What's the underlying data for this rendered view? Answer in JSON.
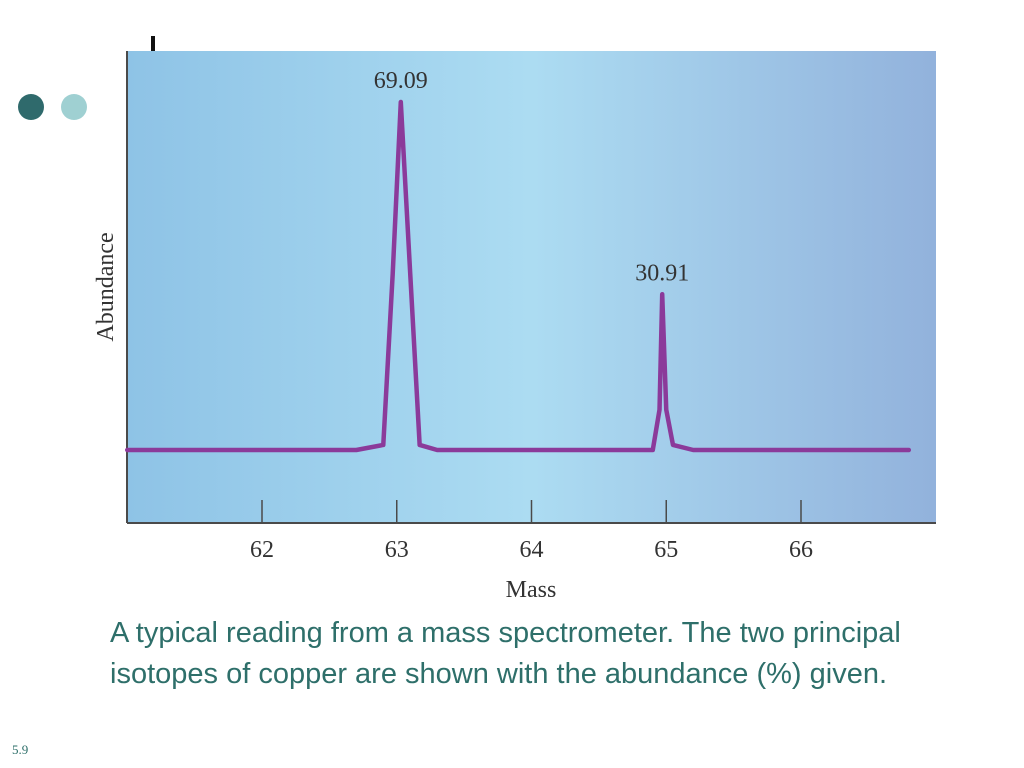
{
  "slide": {
    "caption": "A typical reading from a mass spectrometer.  The two principal isotopes of copper are shown with the abundance (%) given.",
    "slide_number": "5.9",
    "decor": {
      "dot_dark_color": "#2f6a6c",
      "dot_light_color": "#9fd0d2",
      "caption_color": "#2e6f6a"
    }
  },
  "chart_data": {
    "type": "line",
    "title": "",
    "xlabel": "Mass",
    "ylabel": "Abundance",
    "xlim": [
      61,
      67
    ],
    "ylim": [
      0,
      69.09
    ],
    "x_ticks": [
      62,
      63,
      64,
      65,
      66
    ],
    "x_tick_labels": [
      "62",
      "63",
      "64",
      "65",
      "66"
    ],
    "grid": false,
    "series": [
      {
        "color": "#8b3a9a",
        "points": [
          [
            61.0,
            0
          ],
          [
            62.7,
            0
          ],
          [
            62.9,
            1
          ],
          [
            62.97,
            35
          ],
          [
            63.03,
            69.09
          ],
          [
            63.1,
            35
          ],
          [
            63.17,
            1
          ],
          [
            63.3,
            0
          ],
          [
            64.9,
            0
          ],
          [
            64.95,
            8
          ],
          [
            64.97,
            30.91
          ],
          [
            65.0,
            8
          ],
          [
            65.05,
            1
          ],
          [
            65.2,
            0
          ],
          [
            66.8,
            0
          ]
        ]
      }
    ],
    "annotations": [
      {
        "text": "69.09",
        "x": 63.03,
        "y": 69.09
      },
      {
        "text": "30.91",
        "x": 64.97,
        "y": 30.91
      }
    ],
    "background_gradient": [
      "#8ec3e6",
      "#acdcf2",
      "#92b2dc"
    ]
  }
}
